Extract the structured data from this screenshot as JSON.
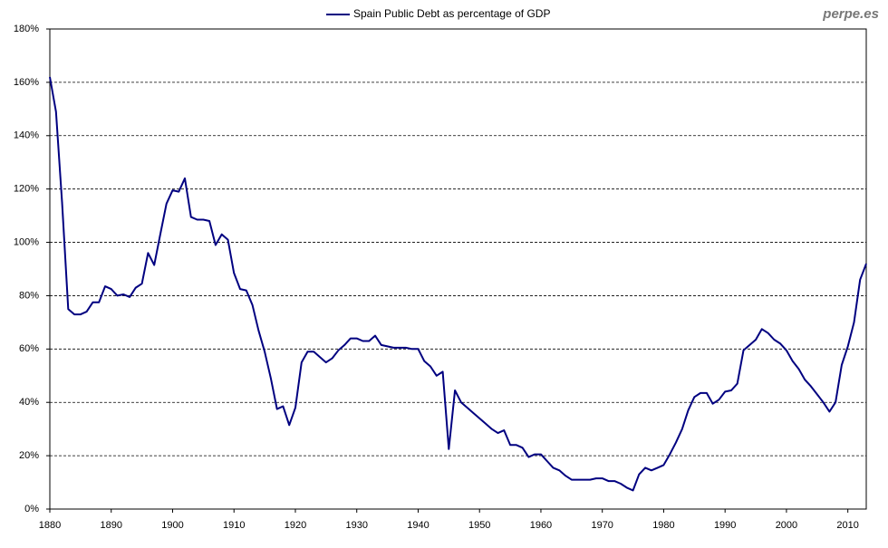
{
  "chart_data": {
    "type": "line",
    "watermark": "perpe.es",
    "x": [
      1880,
      1881,
      1882,
      1883,
      1884,
      1885,
      1886,
      1887,
      1888,
      1889,
      1890,
      1891,
      1892,
      1893,
      1894,
      1895,
      1896,
      1897,
      1898,
      1899,
      1900,
      1901,
      1902,
      1903,
      1904,
      1905,
      1906,
      1907,
      1908,
      1909,
      1910,
      1911,
      1912,
      1913,
      1914,
      1915,
      1916,
      1917,
      1918,
      1919,
      1920,
      1921,
      1922,
      1923,
      1924,
      1925,
      1926,
      1927,
      1928,
      1929,
      1930,
      1931,
      1932,
      1933,
      1934,
      1935,
      1936,
      1937,
      1938,
      1939,
      1940,
      1941,
      1942,
      1943,
      1944,
      1945,
      1946,
      1947,
      1948,
      1949,
      1950,
      1951,
      1952,
      1953,
      1954,
      1955,
      1956,
      1957,
      1958,
      1959,
      1960,
      1961,
      1962,
      1963,
      1964,
      1965,
      1966,
      1967,
      1968,
      1969,
      1970,
      1971,
      1972,
      1973,
      1974,
      1975,
      1976,
      1977,
      1978,
      1979,
      1980,
      1981,
      1982,
      1983,
      1984,
      1985,
      1986,
      1987,
      1988,
      1989,
      1990,
      1991,
      1992,
      1993,
      1994,
      1995,
      1996,
      1997,
      1998,
      1999,
      2000,
      2001,
      2002,
      2003,
      2004,
      2005,
      2006,
      2007,
      2008,
      2009,
      2010,
      2011,
      2012,
      2013
    ],
    "series": [
      {
        "name": "Spain Public Debt as percentage of GDP",
        "color": "#000080",
        "values": [
          162,
          149,
          115,
          75,
          73,
          73,
          74,
          77.5,
          77.5,
          83.5,
          82.5,
          80,
          80.5,
          79.5,
          83,
          84.5,
          96,
          91.5,
          103,
          114.5,
          119.5,
          119,
          124,
          109.5,
          108.5,
          108.5,
          108,
          99,
          103,
          101,
          88.5,
          82.5,
          82,
          76.5,
          67,
          59,
          49,
          37.5,
          38.5,
          31.5,
          38,
          55,
          59,
          59,
          57,
          55,
          56.5,
          59.5,
          61.5,
          64,
          64,
          63,
          63,
          65,
          61.5,
          61,
          60.5,
          60.5,
          60.5,
          60,
          60,
          55.5,
          53.5,
          50,
          51.5,
          22.5,
          44.5,
          40,
          38,
          36,
          34,
          32,
          30,
          28.5,
          29.5,
          24,
          24,
          23,
          19.5,
          20.5,
          20.5,
          18,
          15.5,
          14.5,
          12.5,
          11,
          11,
          11,
          11,
          11.5,
          11.5,
          10.5,
          10.5,
          9.5,
          8,
          7,
          13,
          15.5,
          14.5,
          15.5,
          16.5,
          20.5,
          25,
          30,
          37,
          42,
          43.5,
          43.5,
          39.5,
          41,
          44,
          44.5,
          47,
          59.5,
          61.5,
          63.5,
          67.5,
          66,
          63.5,
          62,
          59.5,
          55.5,
          52.5,
          48.5,
          46,
          43,
          40,
          36.5,
          40,
          54,
          61,
          70,
          86,
          92
        ]
      }
    ],
    "xlim": [
      1880,
      2013
    ],
    "xticks": [
      1880,
      1890,
      1900,
      1910,
      1920,
      1930,
      1940,
      1950,
      1960,
      1970,
      1980,
      1990,
      2000,
      2010
    ],
    "ylim": [
      0,
      180
    ],
    "yticks": [
      {
        "value": 0,
        "label": "0%"
      },
      {
        "value": 20,
        "label": "20%"
      },
      {
        "value": 40,
        "label": "40%"
      },
      {
        "value": 60,
        "label": "60%"
      },
      {
        "value": 80,
        "label": "80%"
      },
      {
        "value": 100,
        "label": "100%"
      },
      {
        "value": 120,
        "label": "120%"
      },
      {
        "value": 140,
        "label": "140%"
      },
      {
        "value": 160,
        "label": "160%"
      },
      {
        "value": 180,
        "label": "180%"
      }
    ],
    "grid": true
  }
}
